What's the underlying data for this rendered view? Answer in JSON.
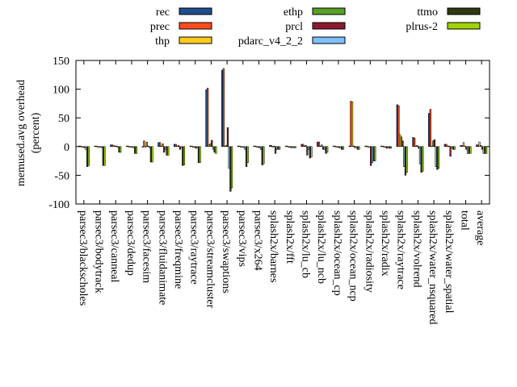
{
  "chart_data": {
    "type": "bar",
    "ylabel_line1": "memused.avg overhead",
    "ylabel_line2": "(percent)",
    "ylim": [
      -100,
      150
    ],
    "yticks": [
      -100,
      -50,
      0,
      50,
      100,
      150
    ],
    "grid": false,
    "legend_position": "top",
    "categories": [
      "parsec3/blackscholes",
      "parsec3/bodytrack",
      "parsec3/canneal",
      "parsec3/dedup",
      "parsec3/facesim",
      "parsec3/fluidanimate",
      "parsec3/freqmine",
      "parsec3/raytrace",
      "parsec3/streamcluster",
      "parsec3/swaptions",
      "parsec3/vips",
      "parsec3/x264",
      "splash2x/barnes",
      "splash2x/fft",
      "splash2x/lu_cb",
      "splash2x/lu_ncb",
      "splash2x/ocean_cp",
      "splash2x/ocean_ncp",
      "splash2x/radiosity",
      "splash2x/radix",
      "splash2x/raytrace",
      "splash2x/volrend",
      "splash2x/water_nsquared",
      "splash2x/water_spatial",
      "total",
      "average"
    ],
    "series": [
      {
        "name": "rec",
        "color": "#1f4e8c",
        "values": [
          1,
          1,
          3,
          1,
          0,
          7,
          4,
          1,
          99,
          133,
          1,
          1,
          2,
          1,
          4,
          8,
          1,
          1,
          1,
          1,
          73,
          16,
          58,
          4,
          2,
          3
        ]
      },
      {
        "name": "prec",
        "color": "#ff4c1c",
        "values": [
          1,
          1,
          3,
          1,
          10,
          7,
          4,
          1,
          102,
          136,
          1,
          1,
          2,
          1,
          4,
          8,
          1,
          79,
          1,
          1,
          71,
          15,
          65,
          4,
          2,
          3
        ]
      },
      {
        "name": "thp",
        "color": "#ffcc1c",
        "values": [
          0,
          0,
          2,
          0,
          0,
          1,
          1,
          0,
          3,
          1,
          0,
          0,
          0,
          0,
          1,
          1,
          0,
          78,
          0,
          0,
          21,
          1,
          1,
          1,
          7,
          8
        ]
      },
      {
        "name": "ethp",
        "color": "#57a225",
        "values": [
          0,
          0,
          1,
          0,
          8,
          5,
          2,
          0,
          5,
          2,
          0,
          0,
          1,
          0,
          2,
          3,
          0,
          1,
          0,
          0,
          17,
          2,
          10,
          1,
          1,
          2
        ]
      },
      {
        "name": "prcl",
        "color": "#8b1a2e",
        "values": [
          -2,
          -1,
          1,
          -1,
          1,
          -10,
          -5,
          -3,
          11,
          33,
          -1,
          -2,
          -12,
          -2,
          -15,
          -5,
          -2,
          -2,
          -33,
          -3,
          10,
          -3,
          12,
          -17,
          -5,
          -5
        ]
      },
      {
        "name": "pdarc_v4_2_2",
        "color": "#7fbfff",
        "values": [
          -5,
          -2,
          0,
          -2,
          -2,
          -5,
          -2,
          -2,
          -5,
          -38,
          -5,
          -5,
          -5,
          -2,
          -5,
          -5,
          -2,
          -2,
          -28,
          -2,
          -35,
          -30,
          -35,
          -2,
          -12,
          -12
        ]
      },
      {
        "name": "ttmo",
        "color": "#2e3a10",
        "values": [
          -35,
          -33,
          -10,
          -12,
          -27,
          -15,
          -33,
          -28,
          -10,
          -78,
          -35,
          -32,
          -5,
          -2,
          -20,
          -12,
          -5,
          -5,
          -25,
          -3,
          -50,
          -45,
          -40,
          -5,
          -12,
          -12
        ]
      },
      {
        "name": "plrus-2",
        "color": "#9fd400",
        "values": [
          -33,
          -33,
          -10,
          -12,
          -27,
          -15,
          -32,
          -28,
          -12,
          -72,
          -28,
          -30,
          -5,
          -2,
          -18,
          -10,
          -5,
          -5,
          -25,
          -3,
          -45,
          -43,
          -38,
          -5,
          -12,
          -12
        ]
      }
    ]
  }
}
